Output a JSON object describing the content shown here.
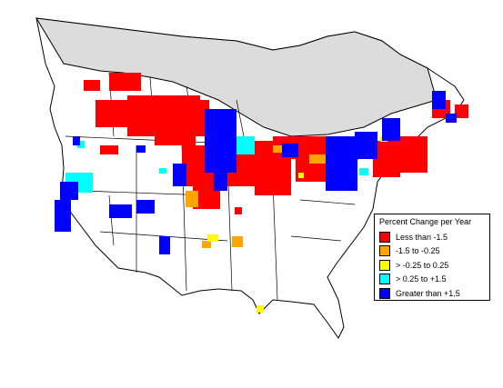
{
  "map": {
    "colors": {
      "land": "#ffffff",
      "no_data_north": "#dcdcdc",
      "boundary": "#000000",
      "red": "#ff0000",
      "orange": "#ffa500",
      "yellow": "#ffff00",
      "cyan": "#00ffff",
      "blue": "#0000ff"
    },
    "legend": {
      "title": "Percent Change per Year",
      "items": [
        {
          "label": "Less than -1.5",
          "color": "#ff0000"
        },
        {
          "label": "-1.5 to -0.25",
          "color": "#ffa500"
        },
        {
          "label": "> -0.25 to 0.25",
          "color": "#ffff00"
        },
        {
          "label": "> 0.25 to +1.5",
          "color": "#00ffff"
        },
        {
          "label": "Greater than +1.5",
          "color": "#0000ff"
        }
      ]
    }
  }
}
